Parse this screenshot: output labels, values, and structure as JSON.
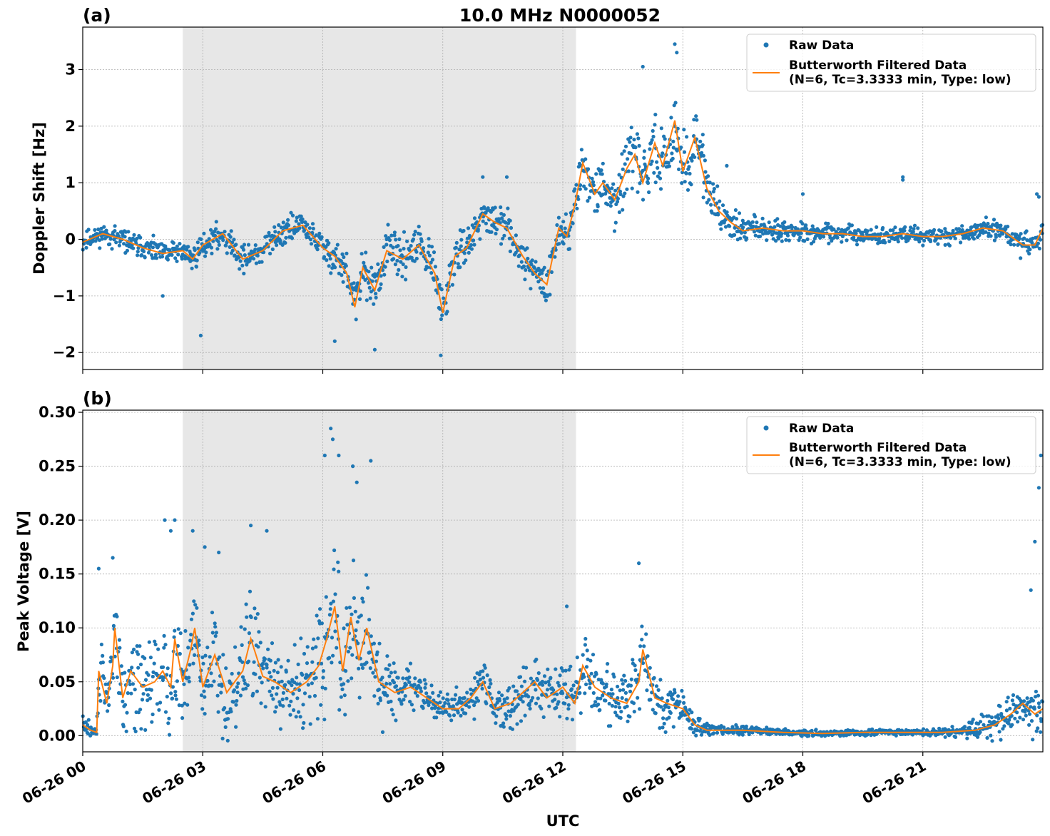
{
  "figure": {
    "title": "10.0 MHz N0000052",
    "xlabel": "UTC",
    "colors": {
      "raw": "#1f77b4",
      "filtered": "#ff7f0e",
      "shade": "#e7e7e7",
      "grid": "#b0b0b0"
    }
  },
  "chart_data": [
    {
      "type": "scatter",
      "panel_label": "(a)",
      "ylabel": "Doppler Shift [Hz]",
      "xlim": [
        0,
        24
      ],
      "ylim": [
        -2.3,
        3.75
      ],
      "yticks": [
        -2,
        -1,
        0,
        1,
        2,
        3
      ],
      "ytick_labels": [
        "−2",
        "−1",
        "0",
        "1",
        "2",
        "3"
      ],
      "shaded_region": [
        2.5,
        12.33
      ],
      "grid": true,
      "legend_position": "top-right",
      "legend": [
        "Raw Data",
        "Butterworth Filtered Data",
        "(N=6, Tc=3.3333 min, Type: low)"
      ],
      "series": [
        {
          "name": "Butterworth Filtered Data (N=6, Tc=3.3333 min, Type: low)",
          "kind": "line",
          "x": [
            0,
            0.5,
            1,
            1.5,
            2,
            2.5,
            2.75,
            3,
            3.5,
            4,
            4.5,
            5,
            5.5,
            6,
            6.3,
            6.6,
            6.8,
            7,
            7.3,
            7.6,
            8,
            8.4,
            8.8,
            9,
            9.3,
            9.6,
            10,
            10.3,
            10.6,
            11,
            11.3,
            11.6,
            11.9,
            12.1,
            12.3,
            12.5,
            12.8,
            13,
            13.3,
            13.6,
            13.8,
            14,
            14.3,
            14.5,
            14.8,
            15,
            15.3,
            15.6,
            15.9,
            16.2,
            16.5,
            17,
            17.5,
            18,
            18.5,
            19,
            19.5,
            20,
            20.5,
            21,
            21.5,
            22,
            22.5,
            23,
            23.5,
            23.8,
            24
          ],
          "y": [
            -0.05,
            0.1,
            0.0,
            -0.15,
            -0.25,
            -0.2,
            -0.35,
            -0.1,
            0.1,
            -0.35,
            -0.2,
            0.15,
            0.25,
            -0.15,
            -0.3,
            -0.6,
            -1.2,
            -0.5,
            -0.9,
            -0.2,
            -0.35,
            -0.1,
            -0.6,
            -1.3,
            -0.3,
            -0.15,
            0.45,
            0.3,
            0.2,
            -0.3,
            -0.6,
            -0.8,
            0.2,
            0.05,
            0.6,
            1.35,
            0.8,
            1.0,
            0.7,
            1.25,
            1.5,
            1.0,
            1.7,
            1.3,
            2.1,
            1.2,
            1.8,
            0.9,
            0.5,
            0.3,
            0.15,
            0.2,
            0.15,
            0.15,
            0.1,
            0.1,
            0.05,
            0.05,
            0.1,
            0.05,
            0.05,
            0.1,
            0.2,
            0.15,
            -0.1,
            -0.1,
            0.2
          ]
        },
        {
          "name": "Raw Data",
          "kind": "scatter",
          "spread_x": [
            0,
            2.5,
            4,
            6,
            6.5,
            7.5,
            9,
            10,
            11.5,
            12,
            12.3,
            13,
            14,
            15,
            15.5,
            16,
            17,
            18,
            20,
            22,
            23.5,
            24
          ],
          "spread_y": [
            0.25,
            0.3,
            0.35,
            0.4,
            0.55,
            0.55,
            0.55,
            0.4,
            0.5,
            0.5,
            0.7,
            0.55,
            0.8,
            0.9,
            0.8,
            0.5,
            0.3,
            0.25,
            0.22,
            0.22,
            0.3,
            0.35
          ],
          "outliers_x": [
            2.0,
            2.95,
            6.3,
            7.3,
            8.95,
            10.0,
            10.6,
            14.0,
            14.8,
            14.85,
            15.5,
            16.1,
            18.0,
            20.5,
            20.5,
            23.85,
            23.9
          ],
          "outliers_y": [
            -1.0,
            -1.7,
            -1.8,
            -1.95,
            -2.05,
            1.1,
            1.1,
            3.05,
            3.45,
            3.3,
            1.85,
            1.3,
            0.8,
            1.05,
            1.1,
            0.8,
            0.75
          ]
        }
      ]
    },
    {
      "type": "scatter",
      "panel_label": "(b)",
      "ylabel": "Peak Voltage [V]",
      "xlim": [
        0,
        24
      ],
      "ylim": [
        -0.015,
        0.302
      ],
      "yticks": [
        0,
        0.05,
        0.1,
        0.15,
        0.2,
        0.25,
        0.3
      ],
      "ytick_labels": [
        "0.00",
        "0.05",
        "0.10",
        "0.15",
        "0.20",
        "0.25",
        "0.30"
      ],
      "xticks": [
        0,
        3,
        6,
        9,
        12,
        15,
        18,
        21
      ],
      "xtick_labels": [
        "06-26 00",
        "06-26 03",
        "06-26 06",
        "06-26 09",
        "06-26 12",
        "06-26 15",
        "06-26 18",
        "06-26 21"
      ],
      "shaded_region": [
        2.5,
        12.33
      ],
      "grid": true,
      "legend_position": "top-right",
      "legend": [
        "Raw Data",
        "Butterworth Filtered Data",
        "(N=6, Tc=3.3333 min, Type: low)"
      ],
      "series": [
        {
          "name": "Butterworth Filtered Data (N=6, Tc=3.3333 min, Type: low)",
          "kind": "line",
          "x": [
            0,
            0.2,
            0.35,
            0.4,
            0.6,
            0.75,
            0.8,
            1.0,
            1.2,
            1.5,
            1.8,
            2.0,
            2.2,
            2.3,
            2.5,
            2.7,
            2.8,
            3.0,
            3.3,
            3.6,
            4.0,
            4.2,
            4.5,
            4.8,
            5.2,
            5.6,
            5.9,
            6.1,
            6.3,
            6.5,
            6.7,
            6.9,
            7.1,
            7.4,
            7.8,
            8.2,
            8.6,
            9.0,
            9.4,
            9.7,
            10.0,
            10.3,
            10.7,
            11.0,
            11.3,
            11.6,
            12.0,
            12.3,
            12.5,
            12.8,
            13.2,
            13.6,
            13.9,
            14.0,
            14.3,
            14.6,
            15.0,
            15.3,
            15.6,
            16.0,
            16.5,
            17.5,
            18.5,
            19.5,
            20.5,
            21.5,
            22.3,
            22.8,
            23.2,
            23.5,
            23.8,
            24
          ],
          "y": [
            0.01,
            0.005,
            0.003,
            0.06,
            0.03,
            0.065,
            0.1,
            0.035,
            0.06,
            0.045,
            0.05,
            0.06,
            0.045,
            0.09,
            0.05,
            0.08,
            0.1,
            0.045,
            0.075,
            0.04,
            0.06,
            0.09,
            0.055,
            0.05,
            0.04,
            0.05,
            0.065,
            0.09,
            0.12,
            0.06,
            0.11,
            0.07,
            0.1,
            0.05,
            0.04,
            0.045,
            0.035,
            0.025,
            0.025,
            0.035,
            0.05,
            0.025,
            0.03,
            0.04,
            0.05,
            0.035,
            0.045,
            0.03,
            0.065,
            0.045,
            0.035,
            0.03,
            0.05,
            0.08,
            0.035,
            0.03,
            0.025,
            0.01,
            0.005,
            0.005,
            0.005,
            0.003,
            0.002,
            0.003,
            0.003,
            0.003,
            0.005,
            0.01,
            0.02,
            0.03,
            0.02,
            0.025
          ]
        },
        {
          "name": "Raw Data",
          "kind": "scatter",
          "spread_x": [
            0,
            0.35,
            0.4,
            1.5,
            2.5,
            4,
            5.5,
            6,
            6.5,
            7,
            8,
            9,
            10,
            11.5,
            12.3,
            13,
            14,
            14.5,
            15,
            15.5,
            16,
            18,
            21,
            22,
            23,
            24
          ],
          "spread_y": [
            0.015,
            0.005,
            0.05,
            0.06,
            0.06,
            0.07,
            0.05,
            0.08,
            0.1,
            0.08,
            0.03,
            0.02,
            0.03,
            0.035,
            0.04,
            0.035,
            0.05,
            0.03,
            0.025,
            0.01,
            0.006,
            0.004,
            0.004,
            0.008,
            0.025,
            0.04
          ],
          "outliers_x": [
            0.4,
            0.75,
            2.05,
            2.2,
            2.3,
            2.75,
            3.05,
            3.4,
            4.2,
            4.6,
            6.05,
            6.2,
            6.25,
            6.4,
            6.75,
            6.85,
            7.2,
            12.1,
            13.9,
            23.7,
            23.8,
            23.9,
            23.95
          ],
          "outliers_y": [
            0.155,
            0.165,
            0.2,
            0.19,
            0.2,
            0.19,
            0.175,
            0.17,
            0.195,
            0.19,
            0.26,
            0.285,
            0.275,
            0.26,
            0.25,
            0.235,
            0.255,
            0.12,
            0.16,
            0.135,
            0.18,
            0.23,
            0.26
          ]
        }
      ]
    }
  ]
}
